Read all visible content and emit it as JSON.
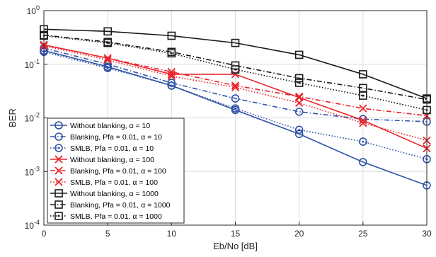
{
  "chart_data": {
    "type": "line",
    "title": "",
    "xlabel": "Eb/No [dB]",
    "ylabel": "BER",
    "x": [
      0,
      5,
      10,
      15,
      20,
      25,
      30
    ],
    "xlim": [
      0,
      30
    ],
    "ylim": [
      0.0001,
      1
    ],
    "yscale": "log",
    "x_ticks": [
      "0",
      "5",
      "10",
      "15",
      "20",
      "25",
      "30"
    ],
    "y_ticks": [
      {
        "base": "10",
        "exp": "0",
        "value": 1
      },
      {
        "base": "10",
        "exp": "-1",
        "value": 0.1
      },
      {
        "base": "10",
        "exp": "-2",
        "value": 0.01
      },
      {
        "base": "10",
        "exp": "-3",
        "value": 0.001
      },
      {
        "base": "10",
        "exp": "-4",
        "value": 0.0001
      }
    ],
    "grid": true,
    "legend_position": "bottom-left",
    "series": [
      {
        "name": "Without blanking, α = 10",
        "color": "#2f52a8",
        "dash": "solid",
        "marker": "circle",
        "values": [
          0.18,
          0.09,
          0.04,
          0.014,
          0.005,
          0.0015,
          0.00055
        ]
      },
      {
        "name": "Blanking, Pfa = 0.01, α = 10",
        "color": "#2f52a8",
        "dash": "dashdot",
        "marker": "circle",
        "values": [
          0.2,
          0.1,
          0.045,
          0.023,
          0.013,
          0.0095,
          0.0085
        ]
      },
      {
        "name": "SMLB, Pfa = 0.01, α = 10",
        "color": "#2f52a8",
        "dash": "dotted",
        "marker": "circle-dot",
        "values": [
          0.17,
          0.085,
          0.04,
          0.015,
          0.006,
          0.0036,
          0.0017
        ]
      },
      {
        "name": "Without blanking, α = 100",
        "color": "#e8242a",
        "dash": "solid",
        "marker": "x",
        "values": [
          0.23,
          0.13,
          0.065,
          0.065,
          0.024,
          0.009,
          0.0027
        ]
      },
      {
        "name": "Blanking, Pfa = 0.01, α = 100",
        "color": "#e8242a",
        "dash": "dashdot",
        "marker": "x",
        "values": [
          0.23,
          0.13,
          0.072,
          0.04,
          0.025,
          0.015,
          0.011
        ]
      },
      {
        "name": "SMLB, Pfa = 0.01, α = 100",
        "color": "#e8242a",
        "dash": "dotted",
        "marker": "x",
        "values": [
          0.22,
          0.12,
          0.06,
          0.037,
          0.019,
          0.008,
          0.0038
        ]
      },
      {
        "name": "Without blanking, α = 1000",
        "color": "#1a1a1a",
        "dash": "solid",
        "marker": "square",
        "values": [
          0.45,
          0.41,
          0.34,
          0.25,
          0.15,
          0.065,
          0.023
        ]
      },
      {
        "name": "Blanking, Pfa = 0.01, α = 1000",
        "color": "#1a1a1a",
        "dash": "dashdot",
        "marker": "square",
        "values": [
          0.35,
          0.26,
          0.17,
          0.095,
          0.055,
          0.036,
          0.022
        ]
      },
      {
        "name": "SMLB, Pfa = 0.01, α = 1000",
        "color": "#1a1a1a",
        "dash": "dotted",
        "marker": "square-dot",
        "values": [
          0.34,
          0.25,
          0.16,
          0.08,
          0.045,
          0.026,
          0.014
        ]
      }
    ]
  }
}
